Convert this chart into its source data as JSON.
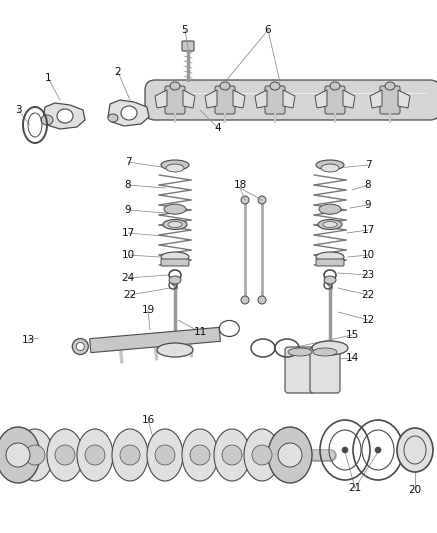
{
  "background_color": "#ffffff",
  "line_color": "#4a4a4a",
  "fill_light": "#e0e0e0",
  "fill_mid": "#c8c8c8",
  "fill_dark": "#b0b0b0",
  "text_color": "#111111",
  "label_fontsize": 7.5,
  "fig_width": 4.37,
  "fig_height": 5.33,
  "dpi": 100,
  "shaft_color": "#d5d5d5",
  "spring_color": "#888888",
  "valve_color": "#c0c0c0",
  "cam_color": "#d0d0d0"
}
